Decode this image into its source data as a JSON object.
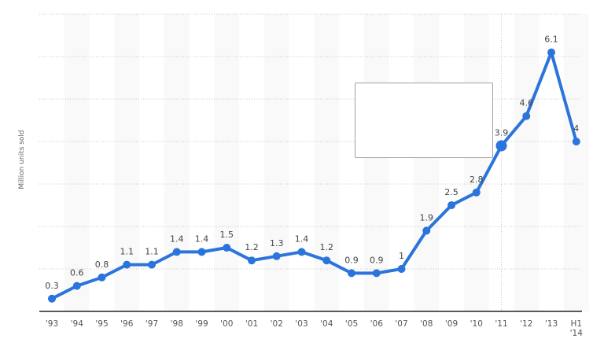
{
  "chart_data": {
    "type": "line",
    "title": "",
    "xlabel": "",
    "ylabel": "Million units sold",
    "categories": [
      "'93",
      "'94",
      "'95",
      "'96",
      "'97",
      "'98",
      "'99",
      "'00",
      "'01",
      "'02",
      "'03",
      "'04",
      "'05",
      "'06",
      "'07",
      "'08",
      "'09",
      "'10",
      "'11",
      "'12",
      "'13",
      "H1 '14"
    ],
    "series": [
      {
        "name": "Million units sold",
        "color": "#2a74db",
        "values": [
          0.3,
          0.6,
          0.8,
          1.1,
          1.1,
          1.4,
          1.4,
          1.5,
          1.2,
          1.3,
          1.4,
          1.2,
          0.9,
          0.9,
          1,
          1.9,
          2.5,
          2.8,
          3.9,
          4.6,
          6.1,
          4
        ]
      }
    ],
    "data_labels": [
      "0.3",
      "0.6",
      "0.8",
      "1.1",
      "1.1",
      "1.4",
      "1.4",
      "1.5",
      "1.2",
      "1.3",
      "1.4",
      "1.2",
      "0.9",
      "0.9",
      "1",
      "1.9",
      "2.5",
      "2.8",
      "3.9",
      "4.6",
      "6.1",
      "4"
    ],
    "ylim": [
      0,
      7
    ],
    "y_gridlines": [
      1,
      2,
      3,
      4,
      5,
      6,
      7
    ],
    "y_tick_labels_visible": false,
    "grid": true,
    "legend": "none",
    "highlighted_point": "'11",
    "tooltip_visible": true,
    "tooltip_text": ""
  },
  "colors": {
    "line": "#2a74db",
    "band": "#f9f9f9",
    "grid": "#c8c8c8",
    "axis": "#222222",
    "label": "#444444"
  }
}
